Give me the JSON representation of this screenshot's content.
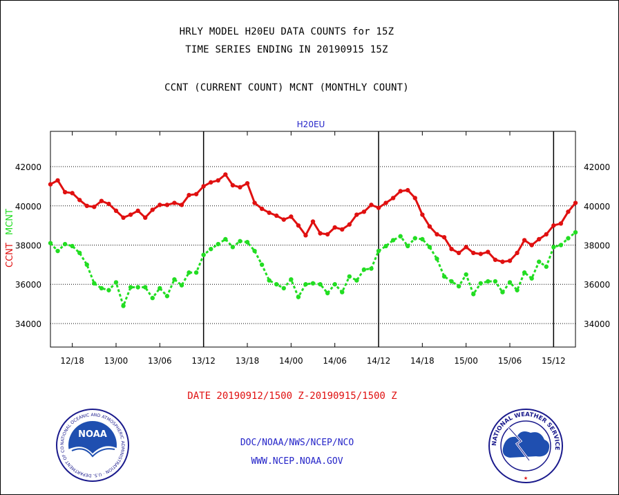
{
  "header": {
    "title_line1": "HRLY MODEL H20EU DATA COUNTS for 15Z",
    "title_line2": "TIME SERIES ENDING IN 20190915 15Z",
    "title_line3": "CCNT (CURRENT COUNT) MCNT (MONTHLY COUNT)"
  },
  "footer": {
    "date_range": "DATE 20190912/1500 Z-20190915/1500 Z",
    "org_path": "DOC/NOAA/NWS/NCEP/NCO",
    "website": "WWW.NCEP.NOAA.GOV"
  },
  "logos": {
    "noaa_text": "NOAA",
    "noaa_ring_text": "NATIONAL OCEANIC AND ATMOSPHERIC ADMINISTRATION · U.S. DEPARTMENT OF COMMERCE ·",
    "nws_ring_text": "NATIONAL WEATHER SERVICE"
  },
  "colors": {
    "ccnt": "#e01010",
    "mcnt": "#22dd22",
    "panel_title": "#2323c8",
    "date": "#e01010"
  },
  "chart_data": {
    "type": "line",
    "title": "H20EU",
    "ylabel_ccnt": "CCNT",
    "ylabel_mcnt": "MCNT",
    "ylim": [
      32800,
      43800
    ],
    "yticks": [
      34000,
      36000,
      38000,
      40000,
      42000
    ],
    "ytick_labels": [
      "34000",
      "36000",
      "38000",
      "40000",
      "42000"
    ],
    "x_start": "2019-09-12 15Z",
    "x_end": "2019-09-15 15Z",
    "xtick_labels": [
      "12/18",
      "13/00",
      "13/06",
      "13/12",
      "13/18",
      "14/00",
      "14/06",
      "14/12",
      "14/18",
      "15/00",
      "15/06",
      "15/12"
    ],
    "xtick_hours": [
      3,
      9,
      15,
      21,
      27,
      33,
      39,
      45,
      51,
      57,
      63,
      69
    ],
    "day_boundary_hours": [
      21,
      45,
      69
    ],
    "grid": true,
    "series": [
      {
        "name": "CCNT",
        "values": [
          41100,
          41300,
          40700,
          40650,
          40300,
          40000,
          39950,
          40250,
          40100,
          39750,
          39400,
          39550,
          39750,
          39400,
          39800,
          40050,
          40050,
          40150,
          40050,
          40550,
          40600,
          41000,
          41200,
          41300,
          41600,
          41050,
          40950,
          41150,
          40150,
          39850,
          39650,
          39500,
          39300,
          39450,
          39000,
          38500,
          39200,
          38600,
          38550,
          38900,
          38800,
          39050,
          39550,
          39700,
          40050,
          39900,
          40150,
          40400,
          40750,
          40800,
          40400,
          39550,
          38950,
          38550,
          38400,
          37800,
          37600,
          37900,
          37600,
          37550,
          37650,
          37250,
          37150,
          37200,
          37600,
          38250,
          38000,
          38300,
          38550,
          39000,
          39100,
          39700,
          40150
        ]
      },
      {
        "name": "MCNT",
        "values": [
          38100,
          37700,
          38050,
          37950,
          37600,
          37000,
          36050,
          35800,
          35700,
          36100,
          34900,
          35850,
          35850,
          35850,
          35300,
          35800,
          35400,
          36250,
          35950,
          36600,
          36600,
          37500,
          37800,
          38050,
          38300,
          37900,
          38200,
          38150,
          37700,
          37000,
          36200,
          36000,
          35800,
          36250,
          35350,
          36000,
          36050,
          36000,
          35550,
          36000,
          35600,
          36400,
          36200,
          36750,
          36800,
          37700,
          37950,
          38250,
          38450,
          37950,
          38350,
          38300,
          37900,
          37300,
          36400,
          36150,
          35900,
          36500,
          35500,
          36050,
          36150,
          36150,
          35600,
          36100,
          35700,
          36600,
          36300,
          37150,
          36900,
          37900,
          38000,
          38350,
          38650
        ]
      }
    ]
  }
}
